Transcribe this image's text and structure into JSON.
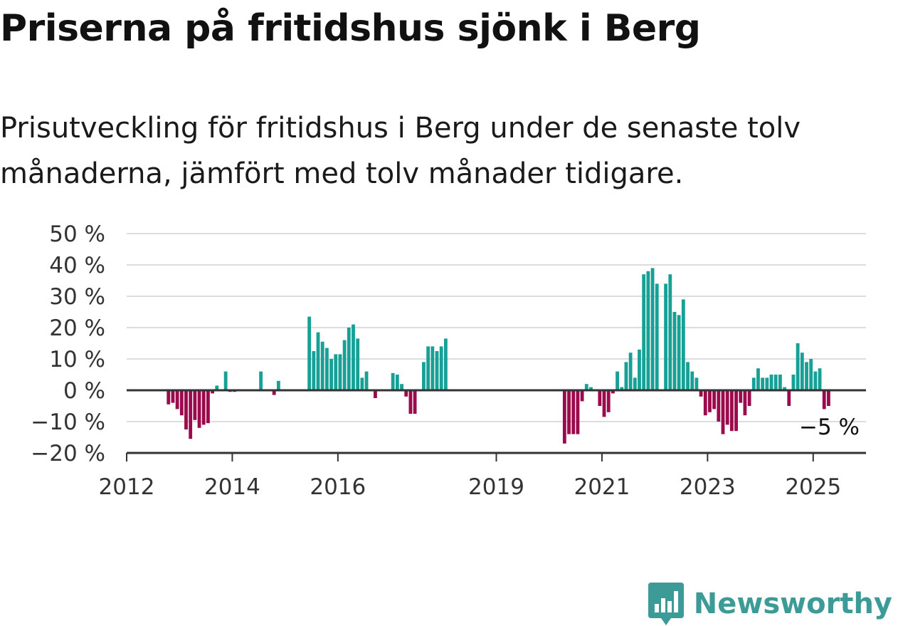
{
  "header": {
    "title": "Priserna på fritidshus sjönk i Berg",
    "subtitle": "Prisutveckling för fritidshus i Berg under de senaste tolv månaderna, jämfört med tolv månader tidigare."
  },
  "brand": {
    "name": "Newsworthy"
  },
  "colors": {
    "positive": "#16a096",
    "negative": "#9b0a4c",
    "baseline": "#333333",
    "grid": "#dddddd",
    "brand": "#3d9b97"
  },
  "chart_data": {
    "type": "bar",
    "title": "Priserna på fritidshus sjönk i Berg",
    "subtitle": "Prisutveckling för fritidshus i Berg under de senaste tolv månaderna, jämfört med tolv månader tidigare.",
    "xlabel": "",
    "ylabel": "",
    "ylim": [
      -20,
      50
    ],
    "y_ticks": [
      50,
      40,
      30,
      20,
      10,
      0,
      -10,
      -20
    ],
    "y_tick_labels": [
      "50 %",
      "40 %",
      "30 %",
      "20 %",
      "10 %",
      "0 %",
      "−10 %",
      "−20 %"
    ],
    "x_ticks": [
      2012,
      2014,
      2016,
      2019,
      2021,
      2023,
      2025
    ],
    "x_tick_labels": [
      "2012",
      "2014",
      "2016",
      "2019",
      "2021",
      "2023",
      "2025"
    ],
    "x_range": [
      "2012-01",
      "2026-01"
    ],
    "grid": true,
    "unit": "%",
    "last_label": "−5 %",
    "x": [
      "2012-10",
      "2012-11",
      "2012-12",
      "2013-01",
      "2013-02",
      "2013-03",
      "2013-04",
      "2013-05",
      "2013-06",
      "2013-07",
      "2013-08",
      "2013-09",
      "2013-11",
      "2013-12",
      "2014-01",
      "2014-07",
      "2014-10",
      "2014-11",
      "2015-06",
      "2015-07",
      "2015-08",
      "2015-09",
      "2015-10",
      "2015-11",
      "2015-12",
      "2016-01",
      "2016-02",
      "2016-03",
      "2016-04",
      "2016-05",
      "2016-06",
      "2016-07",
      "2016-09",
      "2017-01",
      "2017-02",
      "2017-03",
      "2017-04",
      "2017-05",
      "2017-06",
      "2017-08",
      "2017-09",
      "2017-10",
      "2017-11",
      "2017-12",
      "2018-01",
      "2020-04",
      "2020-05",
      "2020-06",
      "2020-07",
      "2020-08",
      "2020-09",
      "2020-10",
      "2020-12",
      "2021-01",
      "2021-02",
      "2021-03",
      "2021-04",
      "2021-05",
      "2021-06",
      "2021-07",
      "2021-08",
      "2021-09",
      "2021-10",
      "2021-11",
      "2021-12",
      "2022-01",
      "2022-03",
      "2022-04",
      "2022-05",
      "2022-06",
      "2022-07",
      "2022-08",
      "2022-09",
      "2022-10",
      "2022-11",
      "2022-12",
      "2023-01",
      "2023-02",
      "2023-03",
      "2023-04",
      "2023-05",
      "2023-06",
      "2023-07",
      "2023-08",
      "2023-09",
      "2023-10",
      "2023-11",
      "2023-12",
      "2024-01",
      "2024-02",
      "2024-03",
      "2024-04",
      "2024-05",
      "2024-06",
      "2024-07",
      "2024-08",
      "2024-09",
      "2024-10",
      "2024-11",
      "2024-12",
      "2025-01",
      "2025-02",
      "2025-03",
      "2025-04"
    ],
    "values": [
      -4.5,
      -4,
      -6,
      -8,
      -12.5,
      -15.5,
      -9.5,
      -12,
      -11,
      -10.5,
      -1,
      1.5,
      6,
      -0.5,
      -0.5,
      6,
      -1.5,
      3,
      23.5,
      12.5,
      18.5,
      15.5,
      13.5,
      10,
      11.5,
      11.5,
      16,
      20,
      21,
      16.5,
      4,
      6,
      -2.5,
      5.5,
      5,
      2,
      -2,
      -7.5,
      -7.5,
      9,
      14,
      14,
      12.5,
      14,
      16.5,
      -17,
      -14,
      -14,
      -14,
      -3.5,
      2,
      1,
      -5,
      -8.5,
      -7,
      -1,
      6,
      1,
      9,
      12,
      4,
      13,
      37,
      38,
      39,
      34,
      34,
      37,
      25,
      24,
      29,
      9,
      6,
      4,
      -2,
      -8,
      -7,
      -6,
      -10,
      -14,
      -11,
      -13,
      -13,
      -4,
      -8,
      -5,
      4,
      7,
      4,
      4,
      5,
      5,
      5,
      1,
      -5,
      5,
      15,
      12,
      9,
      10,
      6,
      7,
      -6,
      -5
    ]
  }
}
